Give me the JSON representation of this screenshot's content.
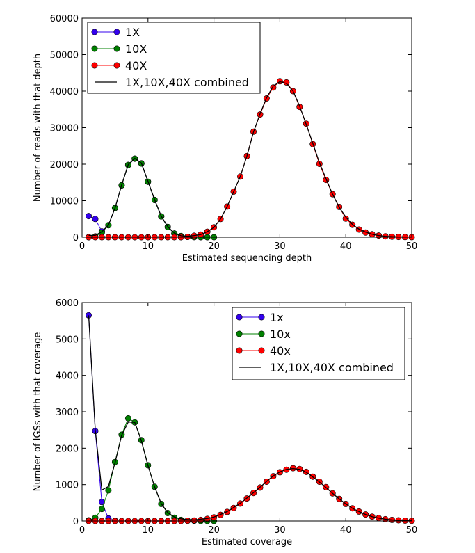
{
  "chart_data": [
    {
      "type": "line",
      "title": "",
      "xlabel": "Estimated sequencing depth",
      "ylabel": "Number of reads with that depth",
      "xlim": [
        0,
        50
      ],
      "ylim": [
        0,
        60000
      ],
      "xticks": [
        "0",
        "10",
        "20",
        "30",
        "40",
        "50"
      ],
      "yticks": [
        "0",
        "10000",
        "20000",
        "30000",
        "40000",
        "50000",
        "60000"
      ],
      "grid": false,
      "legend": "top-left",
      "x": [
        1,
        2,
        3,
        4,
        5,
        6,
        7,
        8,
        9,
        10,
        11,
        12,
        13,
        14,
        15,
        16,
        17,
        18,
        19,
        20,
        21,
        22,
        23,
        24,
        25,
        26,
        27,
        28,
        29,
        30,
        31,
        32,
        33,
        34,
        35,
        36,
        37,
        38,
        39,
        40,
        41,
        42,
        43,
        44,
        45,
        46,
        47,
        48,
        49,
        50
      ],
      "series": [
        {
          "name": "1X",
          "color": "#3300ee",
          "marker": "circle",
          "x": [
            1,
            2,
            3,
            4,
            5,
            6,
            7,
            8,
            9,
            10,
            11,
            12,
            13,
            14,
            15,
            16,
            17,
            18,
            19
          ],
          "values": [
            5800,
            5000,
            1600,
            3300,
            8000,
            14200,
            19800,
            21500,
            20200,
            15200,
            10200,
            5700,
            2800,
            1000,
            300,
            100,
            40,
            15,
            5
          ]
        },
        {
          "name": "10X",
          "color": "#008000",
          "marker": "circle",
          "x": [
            1,
            2,
            3,
            4,
            5,
            6,
            7,
            8,
            9,
            10,
            11,
            12,
            13,
            14,
            15,
            16,
            17,
            18,
            19,
            20
          ],
          "values": [
            0,
            200,
            1300,
            3300,
            8000,
            14200,
            19800,
            21500,
            20200,
            15200,
            10200,
            5700,
            2800,
            1000,
            300,
            100,
            40,
            15,
            5,
            0
          ]
        },
        {
          "name": "40X",
          "color": "#ff0000",
          "marker": "circle",
          "x": [
            1,
            2,
            3,
            4,
            5,
            6,
            7,
            8,
            9,
            10,
            11,
            12,
            13,
            14,
            15,
            16,
            17,
            18,
            19,
            20,
            21,
            22,
            23,
            24,
            25,
            26,
            27,
            28,
            29,
            30,
            31,
            32,
            33,
            34,
            35,
            36,
            37,
            38,
            39,
            40,
            41,
            42,
            43,
            44,
            45,
            46,
            47,
            48,
            49,
            50
          ],
          "values": [
            0,
            0,
            0,
            0,
            0,
            0,
            0,
            0,
            0,
            0,
            0,
            0,
            0,
            0,
            0,
            100,
            400,
            700,
            1500,
            2700,
            5000,
            8400,
            12500,
            16600,
            22200,
            28900,
            33600,
            38000,
            41000,
            42700,
            42400,
            40000,
            35700,
            31100,
            25500,
            20100,
            15700,
            11800,
            8300,
            5100,
            3400,
            2100,
            1300,
            800,
            450,
            250,
            150,
            80,
            40,
            20
          ]
        },
        {
          "name": "1X,10X,40X combined",
          "color": "#000000",
          "marker": "none",
          "x": [
            1,
            2,
            3,
            4,
            5,
            6,
            7,
            8,
            9,
            10,
            11,
            12,
            13,
            14,
            15,
            16,
            17,
            18,
            19,
            20,
            21,
            22,
            23,
            24,
            25,
            26,
            27,
            28,
            29,
            30,
            31,
            32,
            33,
            34,
            35,
            36,
            37,
            38,
            39,
            40,
            41,
            42,
            43,
            44,
            45,
            46,
            47,
            48,
            49,
            50
          ],
          "values": [
            500,
            500,
            1500,
            3300,
            8000,
            14300,
            19900,
            21600,
            20300,
            15300,
            10300,
            5800,
            2900,
            1100,
            400,
            250,
            450,
            720,
            1500,
            2700,
            5000,
            8400,
            12500,
            16600,
            22200,
            28800,
            33800,
            38200,
            41400,
            42600,
            42100,
            40000,
            35900,
            30900,
            25700,
            20400,
            16000,
            11800,
            8200,
            5500,
            3500,
            2200,
            1400,
            800,
            450,
            250,
            150,
            80,
            40,
            20
          ]
        }
      ]
    },
    {
      "type": "line",
      "title": "",
      "xlabel": "Estimated coverage",
      "ylabel": "Number of IGSs with that coverage",
      "xlim": [
        0,
        50
      ],
      "ylim": [
        0,
        6000
      ],
      "xticks": [
        "0",
        "10",
        "20",
        "30",
        "40",
        "50"
      ],
      "yticks": [
        "0",
        "1000",
        "2000",
        "3000",
        "4000",
        "5000",
        "6000"
      ],
      "grid": false,
      "legend": "top-right",
      "series": [
        {
          "name": "1x",
          "color": "#3300ee",
          "marker": "circle",
          "x": [
            1,
            2,
            3,
            4,
            5
          ],
          "values": [
            5650,
            2470,
            520,
            70,
            10
          ]
        },
        {
          "name": "10x",
          "color": "#008000",
          "marker": "circle",
          "x": [
            1,
            2,
            3,
            4,
            5,
            6,
            7,
            8,
            9,
            10,
            11,
            12,
            13,
            14,
            15,
            16,
            17,
            18,
            19,
            20
          ],
          "values": [
            20,
            90,
            330,
            840,
            1620,
            2370,
            2820,
            2710,
            2220,
            1530,
            940,
            470,
            220,
            90,
            30,
            10,
            5,
            0,
            0,
            0
          ]
        },
        {
          "name": "40x",
          "color": "#ff0000",
          "marker": "circle",
          "x": [
            1,
            2,
            3,
            4,
            5,
            6,
            7,
            8,
            9,
            10,
            11,
            12,
            13,
            14,
            15,
            16,
            17,
            18,
            19,
            20,
            21,
            22,
            23,
            24,
            25,
            26,
            27,
            28,
            29,
            30,
            31,
            32,
            33,
            34,
            35,
            36,
            37,
            38,
            39,
            40,
            41,
            42,
            43,
            44,
            45,
            46,
            47,
            48,
            49,
            50
          ],
          "values": [
            0,
            0,
            0,
            0,
            0,
            0,
            0,
            0,
            0,
            0,
            0,
            0,
            0,
            0,
            0,
            5,
            15,
            30,
            60,
            100,
            170,
            250,
            360,
            480,
            620,
            770,
            920,
            1080,
            1230,
            1340,
            1410,
            1450,
            1430,
            1350,
            1220,
            1080,
            930,
            760,
            610,
            470,
            350,
            260,
            180,
            120,
            80,
            50,
            30,
            20,
            10,
            5
          ]
        },
        {
          "name": "1X,10X,40X combined",
          "color": "#000000",
          "marker": "none",
          "x": [
            1,
            2,
            3,
            4,
            5,
            6,
            7,
            8,
            9,
            10,
            11,
            12,
            13,
            14,
            15,
            16,
            17,
            18,
            19,
            20,
            21,
            22,
            23,
            24,
            25,
            26,
            27,
            28,
            29,
            30,
            31,
            32,
            33,
            34,
            35,
            36,
            37,
            38,
            39,
            40,
            41,
            42,
            43,
            44,
            45,
            46,
            47,
            48,
            49,
            50
          ],
          "values": [
            5650,
            2500,
            850,
            950,
            1600,
            2350,
            2720,
            2710,
            2200,
            1520,
            940,
            480,
            230,
            110,
            60,
            40,
            30,
            50,
            70,
            110,
            180,
            260,
            370,
            490,
            630,
            780,
            930,
            1090,
            1240,
            1350,
            1420,
            1440,
            1420,
            1340,
            1210,
            1070,
            920,
            760,
            610,
            470,
            350,
            260,
            180,
            120,
            80,
            50,
            30,
            20,
            10,
            5
          ]
        }
      ]
    }
  ]
}
